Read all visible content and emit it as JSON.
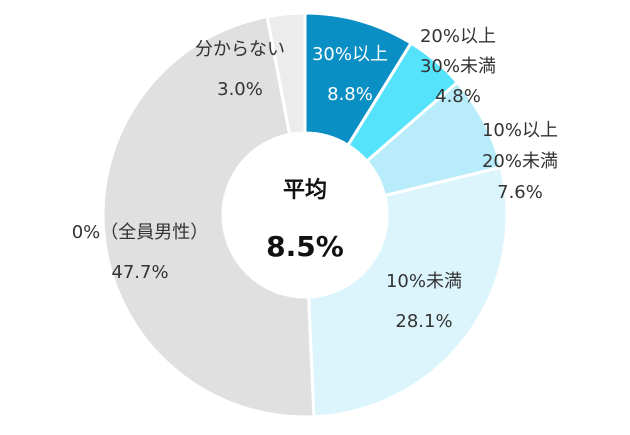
{
  "chart_data": {
    "type": "pie",
    "variant": "donut",
    "categories": [
      "30%以上",
      "20%以上 30%未満",
      "10%以上 20%未満",
      "10%未満",
      "0%（全員男性）",
      "分からない"
    ],
    "label_lines": [
      [
        "30%以上"
      ],
      [
        "20%以上",
        "30%未満"
      ],
      [
        "10%以上",
        "20%未満"
      ],
      [
        "10%未満"
      ],
      [
        "0%（全員男性）"
      ],
      [
        "分からない"
      ]
    ],
    "value_labels": [
      "8.8%",
      "4.8%",
      "7.6%",
      "28.1%",
      "47.7%",
      "3.0%"
    ],
    "values": [
      8.8,
      4.8,
      7.6,
      28.1,
      47.7,
      3.0
    ],
    "colors": [
      "#0a8fc4",
      "#55e3fb",
      "#b8ecfa",
      "#dcf5fd",
      "#e0e0e0",
      "#ececec"
    ],
    "center_title": "平均",
    "center_value": "8.5%",
    "legend": "none",
    "start": "top, clockwise"
  }
}
